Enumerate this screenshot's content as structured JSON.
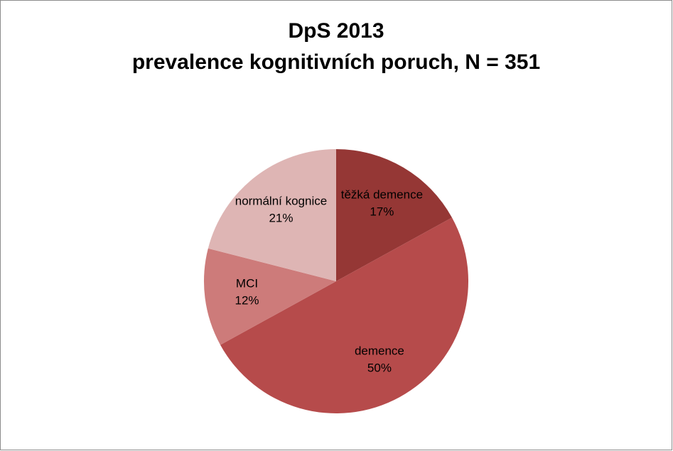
{
  "chart_data": {
    "type": "pie",
    "title": [
      "DpS 2013",
      "prevalence kognitivních poruch, N = 351"
    ],
    "categories": [
      "těžká demence",
      "demence",
      "MCI",
      "normální kognice"
    ],
    "values": [
      17,
      50,
      12,
      21
    ],
    "value_labels": [
      "17%",
      "50%",
      "12%",
      "21%"
    ],
    "colors": [
      "#953735",
      "#b64b4b",
      "#cd7b7a",
      "#deb5b4"
    ]
  }
}
